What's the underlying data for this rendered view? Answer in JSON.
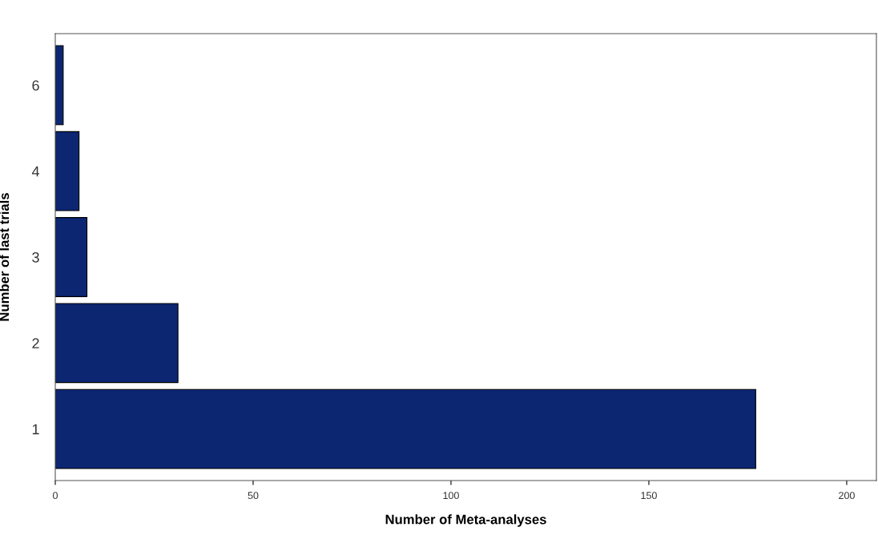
{
  "chart_data": {
    "type": "bar",
    "orientation": "horizontal",
    "xlabel": "Number of Meta-analyses",
    "ylabel": "Number of last trials",
    "categories": [
      "6",
      "4",
      "3",
      "2",
      "1"
    ],
    "values": [
      2,
      6,
      8,
      31,
      177
    ],
    "color": "#0c2672",
    "xlim": [
      0,
      207.5
    ],
    "xticks": [
      0,
      50,
      100,
      150,
      200
    ],
    "grid": false
  }
}
